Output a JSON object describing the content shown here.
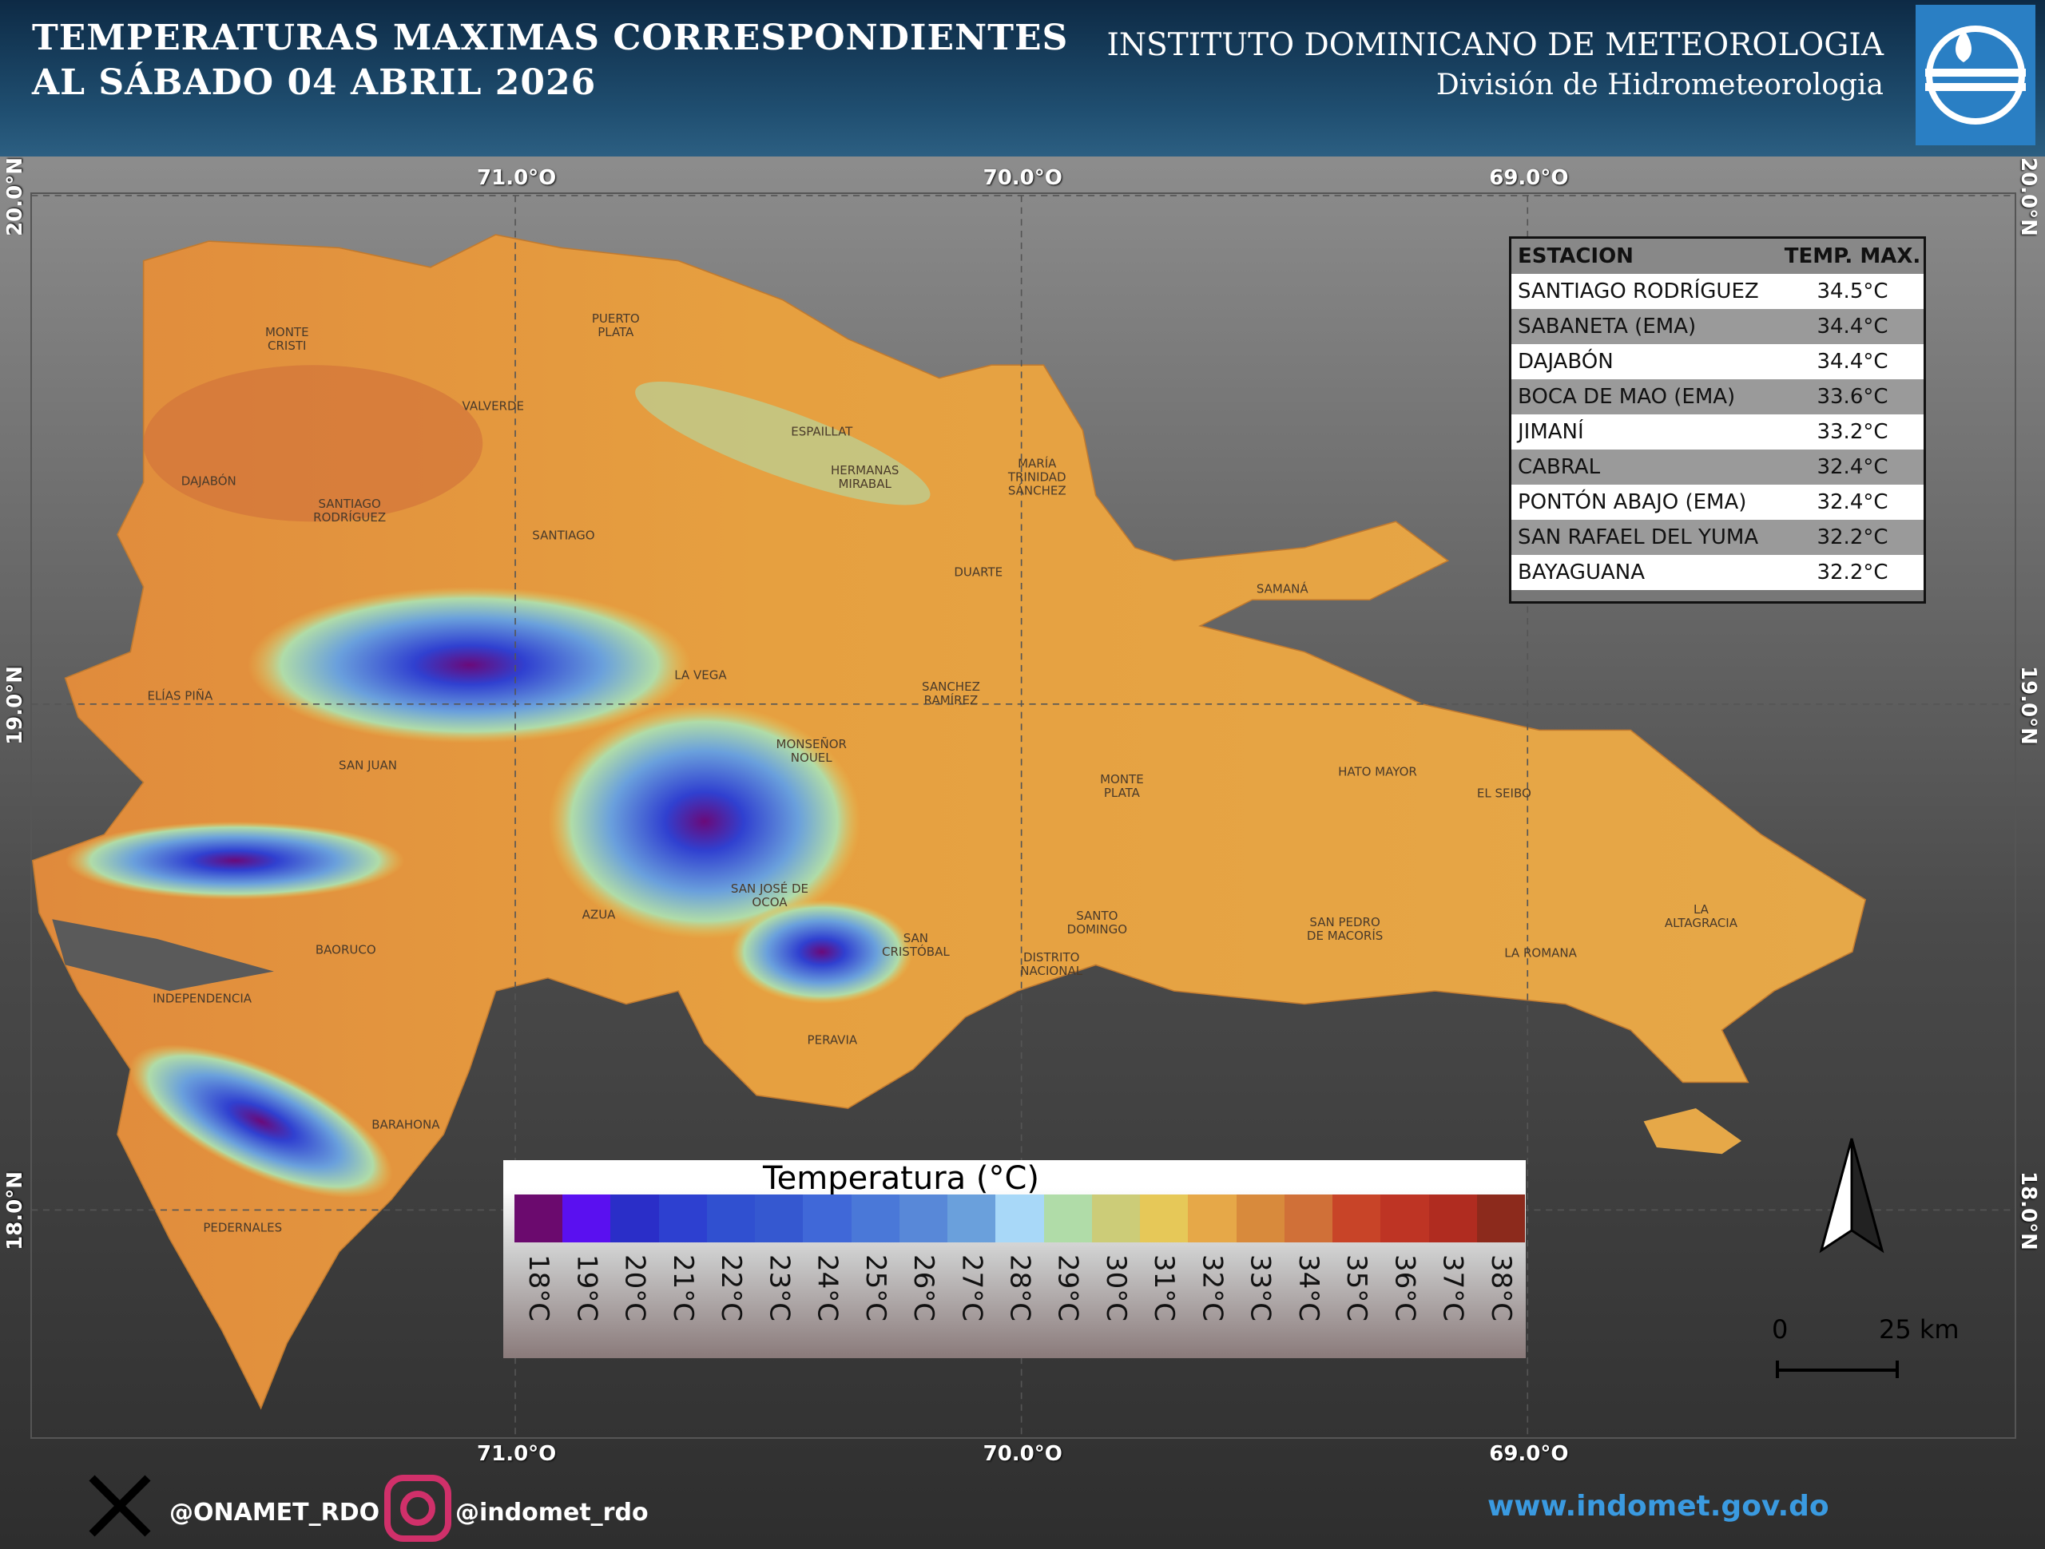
{
  "header": {
    "title_line1": "TEMPERATURAS MAXIMAS CORRESPONDIENTES",
    "title_line2": "AL SÁBADO 04  ABRIL 2026",
    "institute": "INSTITUTO DOMINICANO DE METEOROLOGIA",
    "division": "División de Hidrometeorologia"
  },
  "map": {
    "longitude_labels": [
      "71.0°O",
      "70.0°O",
      "69.0°O"
    ],
    "latitude_labels": [
      "20.0°N",
      "19.0°N",
      "18.0°N"
    ],
    "province_labels": [
      "MONTE\nCRISTI",
      "PUERTO\nPLATA",
      "VALVERDE",
      "ESPAILLAT",
      "HERMANAS\nMIRABAL",
      "MARÍA\nTRINIDAD\nSÁNCHEZ",
      "DAJABÓN",
      "SANTIAGO\nRODRÍGUEZ",
      "SANTIAGO",
      "DUARTE",
      "SAMANÁ",
      "LA VEGA",
      "SANCHEZ\nRAMÍREZ",
      "ELÍAS PIÑA",
      "MONSEÑOR\nNOUEL",
      "SAN JUAN",
      "HATO MAYOR",
      "MONTE\nPLATA",
      "EL SEIBO",
      "SAN JOSÉ DE\nOCOA",
      "AZUA",
      "LA\nALTAGRACIA",
      "SANTO\nDOMINGO",
      "SAN PEDRO\nDE MACORÍS",
      "SAN\nCRISTÓBAL",
      "BAORUCO",
      "LA ROMANA",
      "DISTRITO\nNACIONAL",
      "INDEPENDENCIA",
      "PERAVIA",
      "BARAHONA",
      "PEDERNALES"
    ],
    "station_table": {
      "headers": [
        "ESTACION",
        "TEMP. MAX."
      ],
      "rows": [
        [
          "SANTIAGO RODRÍGUEZ",
          "34.5°C"
        ],
        [
          "SABANETA (EMA)",
          "34.4°C"
        ],
        [
          "DAJABÓN",
          "34.4°C"
        ],
        [
          "BOCA DE MAO (EMA)",
          "33.6°C"
        ],
        [
          "JIMANÍ",
          "33.2°C"
        ],
        [
          "CABRAL",
          "32.4°C"
        ],
        [
          "PONTÓN ABAJO (EMA)",
          "32.4°C"
        ],
        [
          "SAN RAFAEL DEL YUMA",
          "32.2°C"
        ],
        [
          "BAYAGUANA",
          "32.2°C"
        ]
      ]
    },
    "legend": {
      "title": "Temperatura (°C)",
      "items": [
        {
          "label": "18°C",
          "color": "#6b0a6e"
        },
        {
          "label": "19°C",
          "color": "#5a10f0"
        },
        {
          "label": "20°C",
          "color": "#2a2ec8"
        },
        {
          "label": "21°C",
          "color": "#2d40d0"
        },
        {
          "label": "22°C",
          "color": "#3050d0"
        },
        {
          "label": "23°C",
          "color": "#3558d0"
        },
        {
          "label": "24°C",
          "color": "#4068d8"
        },
        {
          "label": "25°C",
          "color": "#4a78d8"
        },
        {
          "label": "26°C",
          "color": "#5888d8"
        },
        {
          "label": "27°C",
          "color": "#6aa0dc"
        },
        {
          "label": "28°C",
          "color": "#a8d8f8"
        },
        {
          "label": "29°C",
          "color": "#b0dca8"
        },
        {
          "label": "30°C",
          "color": "#cccc78"
        },
        {
          "label": "31°C",
          "color": "#e6c858"
        },
        {
          "label": "32°C",
          "color": "#e6a848"
        },
        {
          "label": "33°C",
          "color": "#d88a3c"
        },
        {
          "label": "34°C",
          "color": "#d07038"
        },
        {
          "label": "35°C",
          "color": "#c84428"
        },
        {
          "label": "36°C",
          "color": "#be3424"
        },
        {
          "label": "37°C",
          "color": "#b02c20"
        },
        {
          "label": "38°C",
          "color": "#8c2a1c"
        }
      ]
    },
    "scale_bar": {
      "labels": [
        "0",
        "25 km"
      ]
    }
  },
  "footer": {
    "x_handle": "@ONAMET_RDO",
    "instagram_handle": "@indomet_rdo",
    "website": "www.indomet.gov.do"
  }
}
